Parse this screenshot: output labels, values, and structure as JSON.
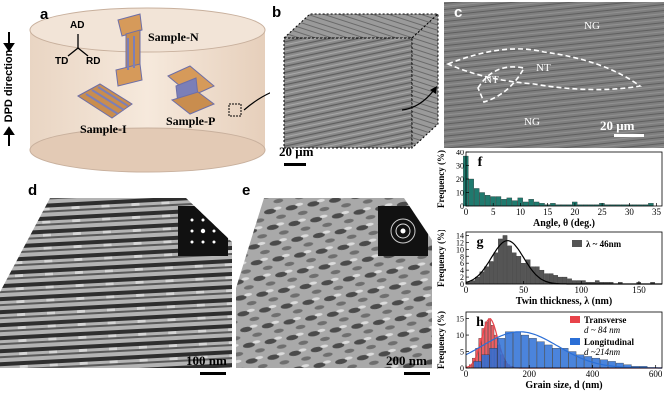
{
  "panels": {
    "a": {
      "label": "a",
      "axes": [
        "AD",
        "TD",
        "RD"
      ],
      "direction": "DPD direction",
      "samples": [
        "Sample-N",
        "Sample-I",
        "Sample-P"
      ]
    },
    "b": {
      "label": "b",
      "scale": "20 μm"
    },
    "c": {
      "label": "c",
      "regions": [
        "NG",
        "NT",
        "NT",
        "NG"
      ],
      "scale": "20 μm"
    },
    "d": {
      "label": "d",
      "scale": "100 nm"
    },
    "e": {
      "label": "e",
      "scale": "200 nm"
    }
  },
  "chart_data": [
    {
      "panel": "f",
      "type": "bar",
      "xlabel": "Angle, θ  (deg.)",
      "ylabel": "Frequency (%)",
      "xlim": [
        0,
        36
      ],
      "ylim": [
        0,
        40
      ],
      "xticks": [
        "0",
        "5",
        "10",
        "15",
        "20",
        "25",
        "30",
        "35"
      ],
      "yticks": [
        "0",
        "10",
        "20",
        "30",
        "40"
      ],
      "color": "#1f7a6e",
      "bin_width": 1,
      "x": [
        0,
        1,
        2,
        3,
        4,
        5,
        6,
        7,
        8,
        9,
        10,
        11,
        12,
        13,
        14,
        15,
        16,
        17,
        18,
        19,
        20,
        21,
        22,
        23,
        24,
        25,
        26,
        27,
        28,
        29,
        30,
        31,
        32,
        33,
        34,
        35
      ],
      "values": [
        37,
        20,
        13,
        10,
        8,
        7,
        7,
        5,
        6,
        4,
        6,
        3,
        5,
        3,
        2,
        1,
        2,
        1,
        1,
        1,
        3,
        1,
        1,
        1,
        1,
        2,
        1,
        1,
        1,
        1,
        1,
        1,
        1,
        1,
        2,
        0
      ]
    },
    {
      "panel": "g",
      "type": "bar",
      "xlabel": "Twin thickness, λ (nm)",
      "ylabel": "Frequency (%)",
      "xlim": [
        0,
        170
      ],
      "ylim": [
        0,
        15
      ],
      "xticks": [
        "0",
        "50",
        "100",
        "150"
      ],
      "yticks": [
        "0",
        "2",
        "4",
        "6",
        "8",
        "10",
        "12",
        "14"
      ],
      "legend": [
        "λ ~ 46nm"
      ],
      "color": "#555555",
      "bin_width": 4,
      "x": [
        2,
        6,
        10,
        14,
        18,
        22,
        26,
        30,
        34,
        38,
        42,
        46,
        50,
        54,
        58,
        62,
        66,
        70,
        74,
        78,
        82,
        86,
        90,
        94,
        98,
        102,
        106,
        110,
        114,
        118,
        122,
        126,
        130,
        134,
        138,
        142,
        146,
        150,
        154,
        158,
        162,
        166
      ],
      "values": [
        0.5,
        1,
        2,
        3.5,
        5,
        6.5,
        9,
        13,
        14,
        11,
        9,
        8,
        6,
        7,
        5,
        5,
        4,
        3,
        3,
        2.5,
        2,
        2,
        1.5,
        1,
        1,
        1,
        0.5,
        0.5,
        1,
        0.5,
        0.5,
        0.5,
        0,
        0.5,
        0,
        0,
        0,
        0.5,
        0,
        0,
        0.5,
        0
      ],
      "fit_mean": 36,
      "fit_sd": 14,
      "fit_peak": 12.5
    },
    {
      "panel": "h",
      "type": "bar",
      "xlabel": "Grain size, d (nm)",
      "ylabel": "Frequency (%)",
      "xlim": [
        0,
        620
      ],
      "ylim": [
        0,
        17
      ],
      "xticks": [
        "0",
        "200",
        "400",
        "600"
      ],
      "yticks": [
        "0",
        "5",
        "10",
        "15"
      ],
      "series": [
        {
          "name": "Transverse",
          "annotation": "d ~ 84 nm",
          "color": "#e8434a",
          "bin_width": 10,
          "x": [
            15,
            25,
            35,
            45,
            55,
            65,
            75,
            85,
            95,
            105,
            115,
            125,
            135,
            145
          ],
          "values": [
            1,
            3,
            6,
            9,
            12,
            14,
            15,
            13,
            10,
            7,
            4,
            2,
            1,
            0.5
          ],
          "fit_mean": 75,
          "fit_sd": 25,
          "fit_peak": 15
        },
        {
          "name": "Longitudinal",
          "annotation": "d ~214nm",
          "color": "#2b6fd6",
          "bin_width": 25,
          "x": [
            37,
            62,
            87,
            112,
            137,
            162,
            187,
            212,
            237,
            262,
            287,
            312,
            337,
            362,
            387,
            412,
            437,
            462,
            487,
            512,
            537,
            562
          ],
          "values": [
            2,
            4,
            6,
            9,
            11,
            11,
            10,
            9,
            8,
            7,
            6,
            6,
            5,
            4,
            3.5,
            3,
            2.5,
            2,
            1.5,
            1,
            0.5,
            0.5
          ],
          "fit_mean": 170,
          "fit_sd": 120,
          "fit_peak": 11
        }
      ]
    }
  ]
}
